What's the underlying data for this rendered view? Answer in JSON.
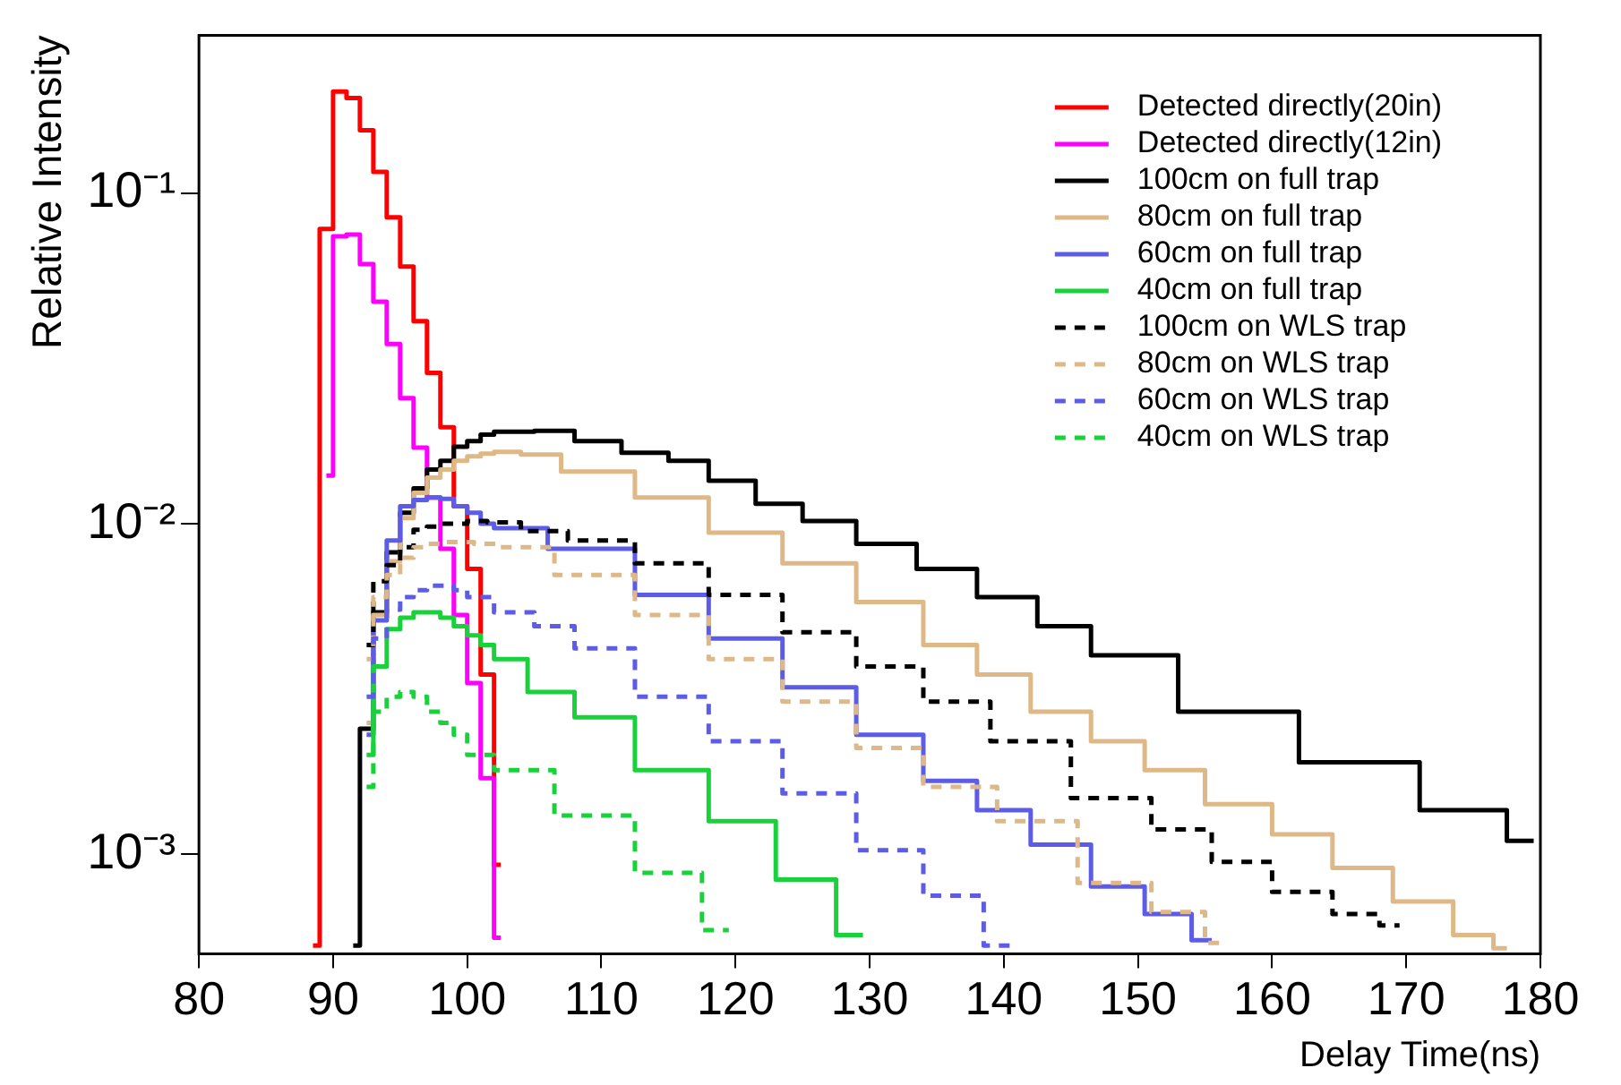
{
  "chart_data": {
    "type": "step",
    "xlabel": "Delay Time(ns)",
    "ylabel": "Relative Intensity",
    "log": "y",
    "grid": false,
    "legend": "top right",
    "marker": "none",
    "xlim": [
      80,
      180
    ],
    "xticks": [
      80,
      90,
      100,
      110,
      120,
      130,
      140,
      150,
      160,
      170,
      180
    ],
    "ylim": [
      0.0005,
      0.3
    ],
    "yticks": [
      {
        "value": 0.001,
        "label": "10⁻³"
      },
      {
        "value": 0.01,
        "label": "10⁻²"
      },
      {
        "value": 0.1,
        "label": "10⁻¹"
      }
    ],
    "series": [
      {
        "name": "Detected directly(20in)",
        "color": "#ff0000",
        "line_style": "solid",
        "x": [
          88.5,
          89.5,
          90.5,
          91.5,
          92.5,
          93.5,
          94.5,
          95.5,
          96.5,
          97.5,
          98.5,
          99.5,
          100.5,
          101.5,
          102.5
        ],
        "values": [
          0.00053,
          0.078,
          0.203,
          0.194,
          0.155,
          0.116,
          0.0846,
          0.06,
          0.041,
          0.0286,
          0.0196,
          0.0113,
          0.0073,
          0.0035,
          0.00093
        ]
      },
      {
        "name": "Detected directly(12in)",
        "color": "#ff00ff",
        "line_style": "solid",
        "x": [
          89.5,
          90.5,
          91.5,
          92.5,
          93.5,
          94.5,
          95.5,
          96.5,
          97.5,
          98.5,
          99.5,
          100.5,
          101.5,
          102.5
        ],
        "values": [
          0.014,
          0.074,
          0.075,
          0.061,
          0.047,
          0.035,
          0.024,
          0.017,
          0.012,
          0.0084,
          0.0053,
          0.0033,
          0.0017,
          0.00056
        ]
      },
      {
        "name": "100cm on full trap",
        "color": "#000000",
        "line_style": "solid",
        "x": [
          91.5,
          92.5,
          93.5,
          94.5,
          95.5,
          96.5,
          97.5,
          98.5,
          99.5,
          100.5,
          101.5,
          102.5,
          103.5,
          106.5,
          109.5,
          113.5,
          116.5,
          119.5,
          123.5,
          126.5,
          131.5,
          135.5,
          140.5,
          144.5,
          148.5,
          157.5,
          166.5,
          175.5,
          179.5
        ],
        "values": [
          0.00053,
          0.0024,
          0.0054,
          0.0082,
          0.0108,
          0.0128,
          0.0146,
          0.0155,
          0.0171,
          0.0178,
          0.0186,
          0.019,
          0.019,
          0.0191,
          0.0178,
          0.0164,
          0.0155,
          0.0135,
          0.0115,
          0.0102,
          0.0087,
          0.0073,
          0.006,
          0.0049,
          0.004,
          0.0027,
          0.0019,
          0.00136,
          0.0011
        ]
      },
      {
        "name": "80cm on full trap",
        "color": "#deb887",
        "line_style": "solid",
        "x": [
          92.5,
          93.5,
          94.5,
          95.5,
          96.5,
          97.5,
          98.5,
          99.5,
          100.5,
          101.5,
          102.5,
          103.5,
          104.5,
          109.5,
          115.5,
          120.5,
          126.5,
          131.5,
          136.5,
          139.5,
          144.5,
          148.5,
          152.5,
          157.5,
          162.5,
          166.5,
          171.5,
          175.5,
          177.5
        ],
        "values": [
          0.0025,
          0.0053,
          0.0077,
          0.0104,
          0.0124,
          0.0138,
          0.0146,
          0.0155,
          0.016,
          0.0163,
          0.0165,
          0.0165,
          0.0162,
          0.0144,
          0.012,
          0.0094,
          0.0076,
          0.0058,
          0.0043,
          0.0035,
          0.0027,
          0.0022,
          0.0018,
          0.00142,
          0.00115,
          0.00091,
          0.00072,
          0.00057,
          0.00052
        ]
      },
      {
        "name": "60cm on full trap",
        "color": "#5c5ce6",
        "line_style": "solid",
        "x": [
          92.5,
          93.5,
          94.5,
          95.5,
          96.5,
          97.5,
          98.5,
          99.5,
          100.5,
          101.5,
          102.5,
          109.5,
          115.5,
          120.5,
          126.5,
          131.5,
          136.5,
          139.5,
          144.5,
          148.5,
          152.5,
          155.5
        ],
        "values": [
          0.0023,
          0.0051,
          0.0089,
          0.0113,
          0.0118,
          0.012,
          0.0119,
          0.0113,
          0.0108,
          0.01,
          0.0097,
          0.0084,
          0.0061,
          0.0045,
          0.0032,
          0.0023,
          0.00167,
          0.00136,
          0.00107,
          0.0008,
          0.00066,
          0.00055
        ]
      },
      {
        "name": "40cm on full trap",
        "color": "#19d13a",
        "line_style": "solid",
        "x": [
          92.5,
          93.5,
          94.5,
          95.5,
          96.5,
          97.5,
          98.5,
          99.5,
          100.5,
          101.5,
          102.5,
          106.5,
          109.5,
          115.5,
          120.5,
          125.5,
          129.5
        ],
        "values": [
          0.002,
          0.0037,
          0.0048,
          0.0052,
          0.0054,
          0.0054,
          0.0052,
          0.0049,
          0.0046,
          0.0043,
          0.0039,
          0.0031,
          0.0026,
          0.0018,
          0.00126,
          0.00084,
          0.00057
        ]
      },
      {
        "name": "100cm on WLS trap",
        "color": "#000000",
        "line_style": "dashed",
        "x": [
          92.5,
          93.5,
          94.5,
          95.5,
          96.5,
          97.5,
          98.5,
          99.5,
          100.5,
          102.5,
          105.5,
          109.5,
          115.5,
          120.5,
          126.5,
          131.5,
          136.5,
          141.5,
          148.5,
          153.5,
          157.5,
          162.5,
          166.5,
          169.5
        ],
        "values": [
          0.0043,
          0.0067,
          0.0075,
          0.0085,
          0.0096,
          0.0098,
          0.01,
          0.01,
          0.0102,
          0.0101,
          0.0095,
          0.0089,
          0.0076,
          0.0061,
          0.0047,
          0.0037,
          0.0029,
          0.0022,
          0.00148,
          0.00119,
          0.00095,
          0.00077,
          0.00066,
          0.00061
        ]
      },
      {
        "name": "80cm on WLS trap",
        "color": "#deb887",
        "line_style": "dashed",
        "x": [
          92.5,
          93.5,
          94.5,
          95.5,
          96.5,
          97.5,
          98.5,
          99.5,
          101.5,
          103.5,
          109.5,
          115.5,
          120.5,
          126.5,
          131.5,
          136.5,
          142.5,
          148.5,
          153.5,
          156.5
        ],
        "values": [
          0.0039,
          0.006,
          0.007,
          0.0079,
          0.0085,
          0.0087,
          0.0088,
          0.0088,
          0.0087,
          0.0085,
          0.007,
          0.0053,
          0.0039,
          0.0029,
          0.0021,
          0.0016,
          0.00126,
          0.00082,
          0.00067,
          0.00054
        ]
      },
      {
        "name": "60cm on WLS trap",
        "color": "#5c5ce6",
        "line_style": "dashed",
        "x": [
          92.5,
          93.5,
          94.5,
          95.5,
          96.5,
          97.5,
          98.5,
          99.5,
          100.5,
          103.5,
          106.5,
          109.5,
          115.5,
          120.5,
          126.5,
          131.5,
          136.5,
          140.5
        ],
        "values": [
          0.003,
          0.0045,
          0.0055,
          0.006,
          0.0063,
          0.0065,
          0.0065,
          0.0063,
          0.006,
          0.0054,
          0.0049,
          0.0042,
          0.003,
          0.0022,
          0.00153,
          0.00103,
          0.00075,
          0.00053
        ]
      },
      {
        "name": "40cm on WLS trap",
        "color": "#19d13a",
        "line_style": "dashed",
        "x": [
          92.5,
          93.5,
          94.5,
          95.5,
          96.5,
          97.5,
          98.5,
          99.5,
          100.5,
          103.5,
          109.5,
          115.5,
          119.5
        ],
        "values": [
          0.0016,
          0.0027,
          0.003,
          0.0031,
          0.003,
          0.0027,
          0.0025,
          0.0023,
          0.002,
          0.0018,
          0.00131,
          0.00088,
          0.00059
        ]
      }
    ]
  }
}
